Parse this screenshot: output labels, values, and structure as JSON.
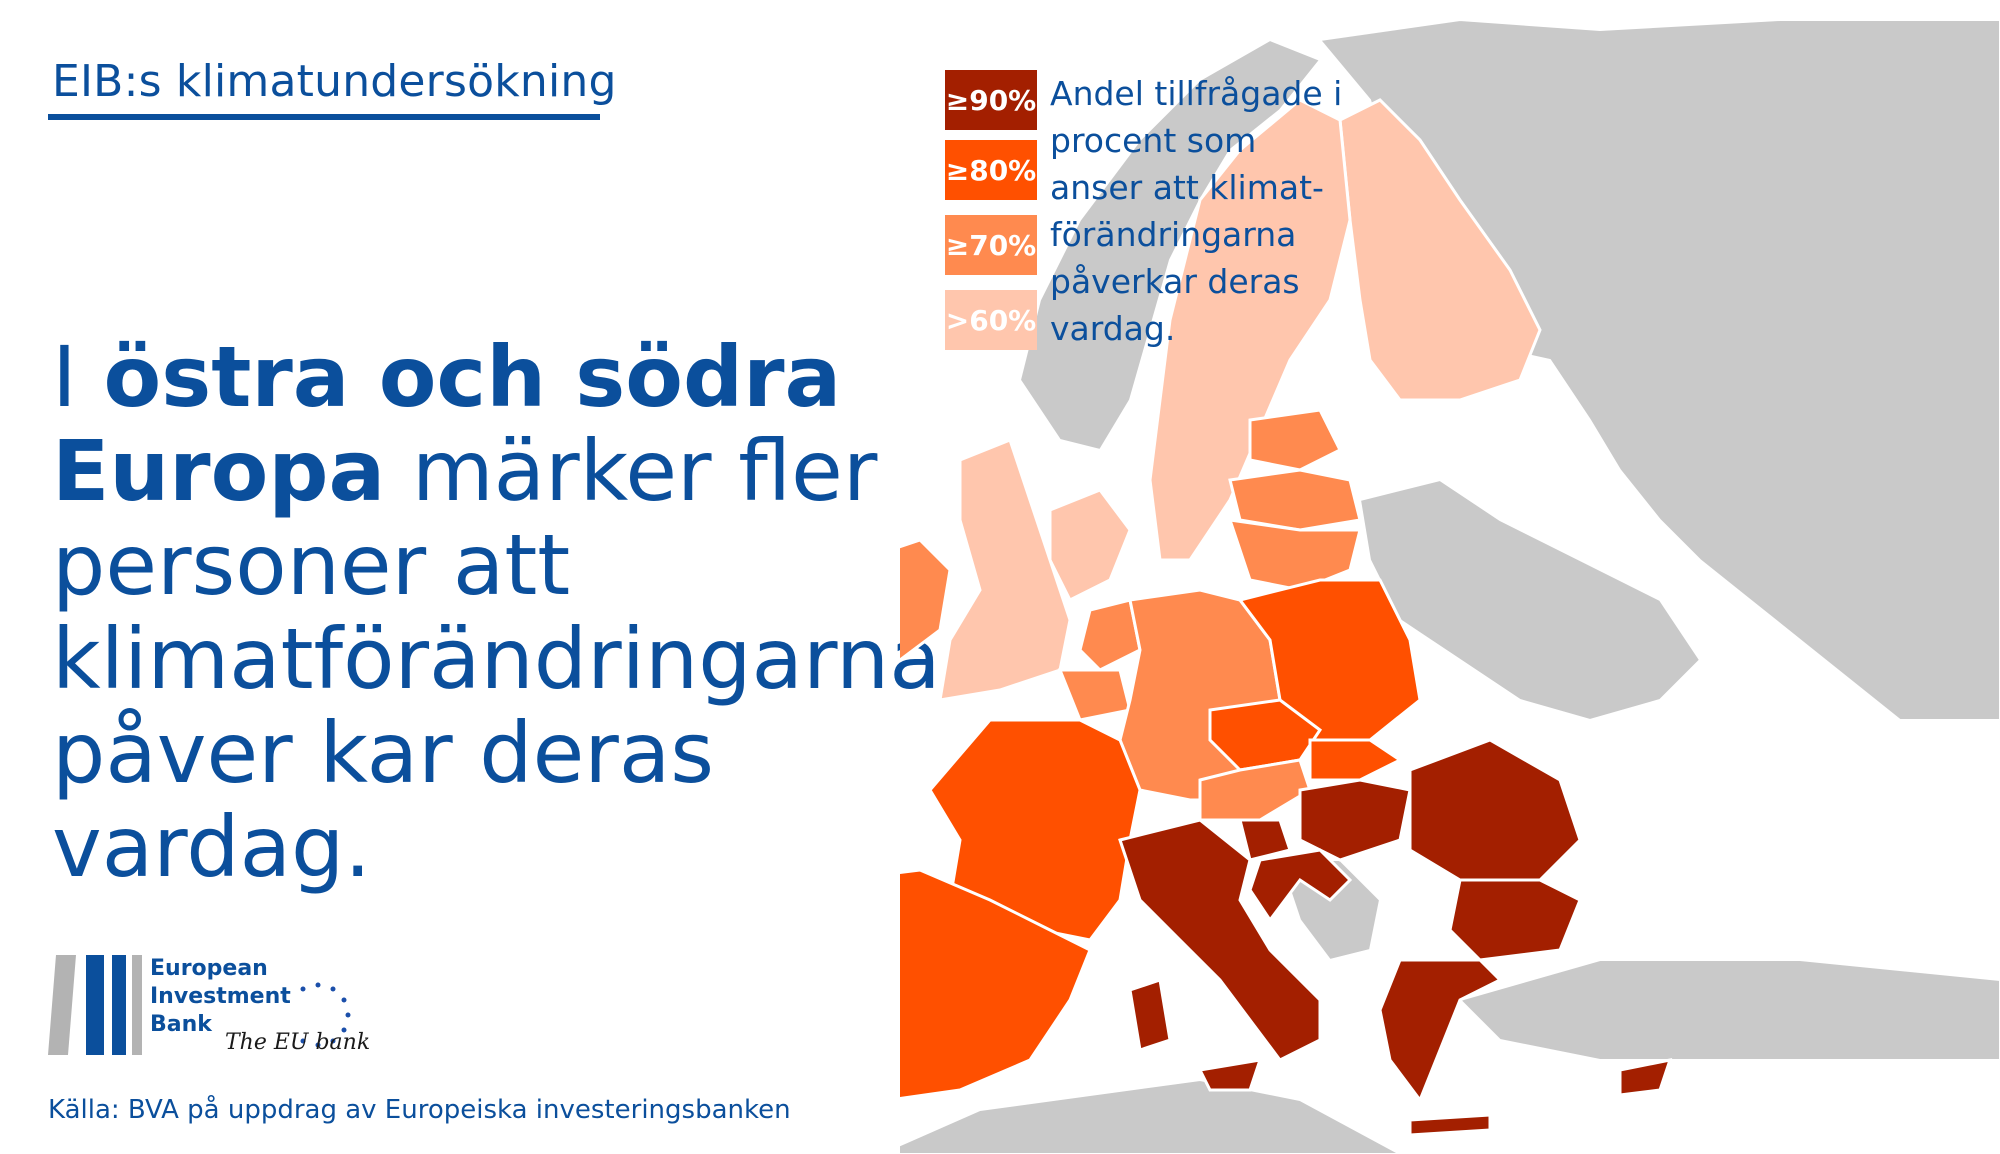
{
  "header": {
    "title": "EIB:s klimatundersökning"
  },
  "headline": {
    "part1": "I ",
    "bold1": "östra och södra",
    "bold2": "Europa",
    "rest1": " märker fler",
    "line3": "personer att",
    "line4": "klimatförändringarna",
    "line5": "påver kar deras vardag."
  },
  "legend": {
    "items": [
      {
        "label": "≥90%",
        "color": "#a31f00"
      },
      {
        "label": "≥80%",
        "color": "#ff5000"
      },
      {
        "label": "≥70%",
        "color": "#ff8a4f"
      },
      {
        "label": ">60%",
        "color": "#ffc6ad"
      }
    ],
    "description_lines": [
      "Andel tillfrågade i",
      "procent som",
      "anser att klimat-",
      "förändringarna",
      "påverkar deras",
      "vardag."
    ]
  },
  "logo": {
    "line1": "European",
    "line2": "Investment",
    "line3": "Bank",
    "tagline": "The EU bank"
  },
  "source": "Källa: BVA på uppdrag av Europeiska investeringsbanken",
  "colors": {
    "ge90": "#a31f00",
    "ge80": "#ff5000",
    "ge70": "#ff8a4f",
    "gt60": "#ffc6ad",
    "non_eu": "#c9c9c9",
    "brand": "#0b4f9c"
  }
}
